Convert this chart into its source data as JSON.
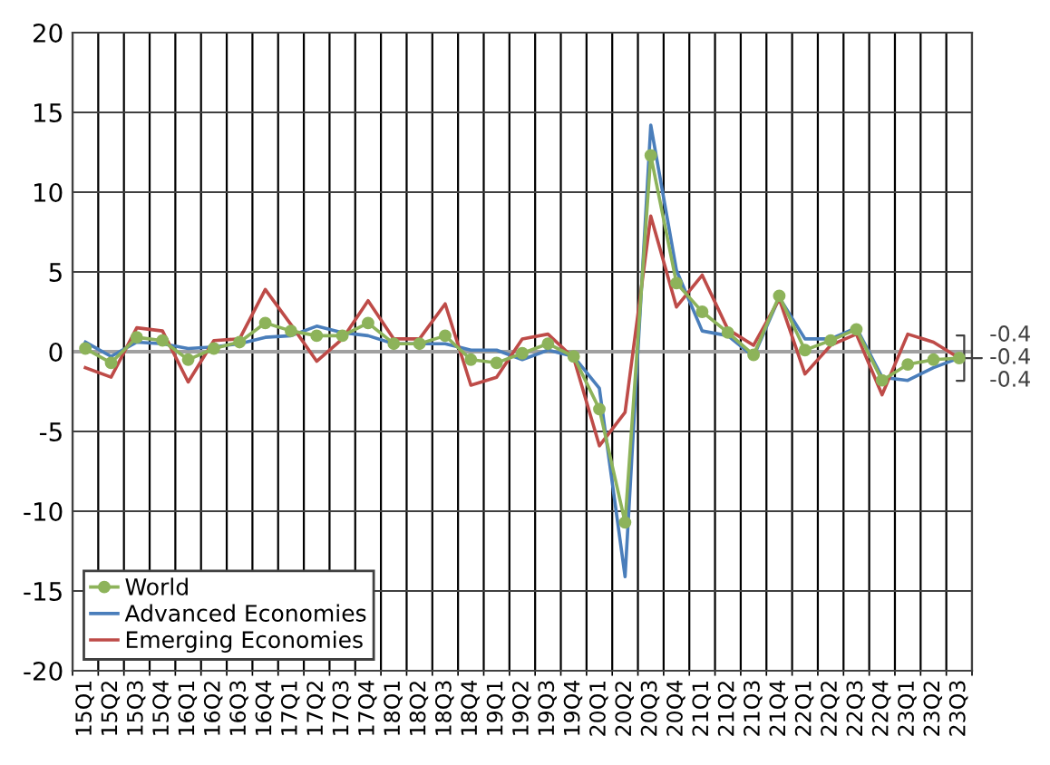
{
  "chart_data": {
    "type": "line",
    "categories": [
      "15Q1",
      "15Q2",
      "15Q3",
      "15Q4",
      "16Q1",
      "16Q2",
      "16Q3",
      "16Q4",
      "17Q1",
      "17Q2",
      "17Q3",
      "17Q4",
      "18Q1",
      "18Q2",
      "18Q3",
      "18Q4",
      "19Q1",
      "19Q2",
      "19Q3",
      "19Q4",
      "20Q1",
      "20Q2",
      "20Q3",
      "20Q4",
      "21Q1",
      "21Q2",
      "21Q3",
      "21Q4",
      "22Q1",
      "22Q2",
      "22Q3",
      "22Q4",
      "23Q1",
      "23Q2",
      "23Q3"
    ],
    "series": [
      {
        "name": "World",
        "color": "#8db35a",
        "marker": "circle",
        "values": [
          0.2,
          -0.7,
          0.9,
          0.7,
          -0.5,
          0.2,
          0.6,
          1.8,
          1.3,
          1.0,
          1.0,
          1.8,
          0.5,
          0.5,
          1.0,
          -0.5,
          -0.7,
          -0.1,
          0.5,
          -0.3,
          -3.6,
          -10.7,
          12.3,
          4.3,
          2.5,
          1.2,
          -0.2,
          3.5,
          0.1,
          0.7,
          1.4,
          -1.8,
          -0.8,
          -0.5,
          -0.4
        ],
        "value_labels": [
          null,
          null,
          null,
          null,
          null,
          null,
          null,
          null,
          null,
          null,
          null,
          null,
          null,
          null,
          null,
          null,
          null,
          null,
          null,
          null,
          null,
          null,
          null,
          null,
          null,
          null,
          null,
          null,
          null,
          null,
          null,
          null,
          null,
          null,
          "-0.4"
        ]
      },
      {
        "name": "Advanced Economies",
        "color": "#4a7ebb",
        "marker": "none",
        "values": [
          0.6,
          -0.3,
          0.6,
          0.5,
          0.2,
          0.3,
          0.5,
          0.9,
          1.0,
          1.6,
          1.2,
          1.0,
          0.5,
          0.5,
          0.5,
          0.1,
          0.1,
          -0.5,
          0.1,
          -0.3,
          -2.3,
          -14.1,
          14.2,
          5.1,
          1.3,
          1.0,
          -0.3,
          3.4,
          0.8,
          0.8,
          1.5,
          -1.6,
          -1.8,
          -1.0,
          -0.4
        ],
        "value_labels": [
          null,
          null,
          null,
          null,
          null,
          null,
          null,
          null,
          null,
          null,
          null,
          null,
          null,
          null,
          null,
          null,
          null,
          null,
          null,
          null,
          null,
          null,
          null,
          null,
          null,
          null,
          null,
          null,
          null,
          null,
          null,
          null,
          null,
          null,
          "-0.4"
        ]
      },
      {
        "name": "Emerging Economies",
        "color": "#be4b48",
        "marker": "none",
        "values": [
          -1.0,
          -1.6,
          1.5,
          1.3,
          -1.9,
          0.7,
          0.8,
          3.9,
          1.7,
          -0.6,
          0.8,
          3.2,
          0.8,
          0.8,
          3.0,
          -2.1,
          -1.6,
          0.8,
          1.1,
          -0.4,
          -5.9,
          -3.8,
          8.5,
          2.8,
          4.8,
          1.4,
          0.4,
          3.3,
          -1.4,
          0.4,
          1.1,
          -2.7,
          1.1,
          0.6,
          -0.4
        ],
        "value_labels": [
          null,
          null,
          null,
          null,
          null,
          null,
          null,
          null,
          null,
          null,
          null,
          null,
          null,
          null,
          null,
          null,
          null,
          null,
          null,
          null,
          null,
          null,
          null,
          null,
          null,
          null,
          null,
          null,
          null,
          null,
          null,
          null,
          null,
          null,
          "-0.4"
        ]
      }
    ],
    "ylim": [
      -20,
      20
    ],
    "yticks": [
      -20,
      -15,
      -10,
      -5,
      0,
      5,
      10,
      15,
      20
    ],
    "grid": true,
    "legend": "bottom left",
    "line_style": "solid"
  }
}
